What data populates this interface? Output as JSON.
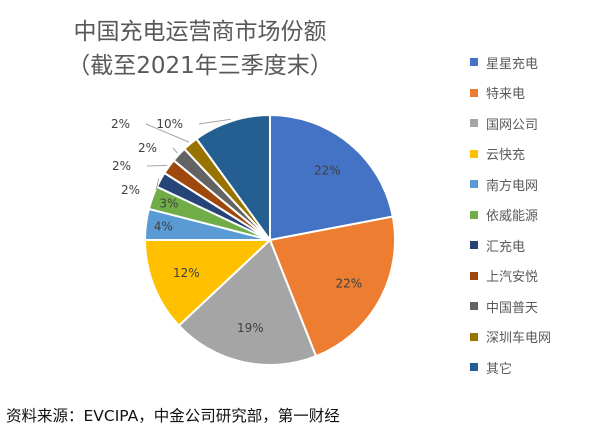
{
  "chart_data": {
    "type": "pie",
    "title": "中国充电运营商市场份额",
    "subtitle": "（截至2021年三季度末）",
    "legend_position": "right",
    "slices": [
      {
        "name": "星星充电",
        "value": 22,
        "label": "22%",
        "color": "#4472C4"
      },
      {
        "name": "特来电",
        "value": 22,
        "label": "22%",
        "color": "#ED7D31"
      },
      {
        "name": "国网公司",
        "value": 19,
        "label": "19%",
        "color": "#A5A5A5"
      },
      {
        "name": "云快充",
        "value": 12,
        "label": "12%",
        "color": "#FFC000"
      },
      {
        "name": "南方电网",
        "value": 4,
        "label": "4%",
        "color": "#5B9BD5"
      },
      {
        "name": "依威能源",
        "value": 3,
        "label": "3%",
        "color": "#70AD47"
      },
      {
        "name": "汇充电",
        "value": 2,
        "label": "2%",
        "color": "#264478"
      },
      {
        "name": "上汽安悦",
        "value": 2,
        "label": "2%",
        "color": "#9E480E"
      },
      {
        "name": "中国普天",
        "value": 2,
        "label": "2%",
        "color": "#636363"
      },
      {
        "name": "深圳车电网",
        "value": 2,
        "label": "2%",
        "color": "#997300"
      },
      {
        "name": "其它",
        "value": 10,
        "label": "10%",
        "color": "#255E91"
      }
    ]
  },
  "source": "资料来源：EVCIPA，中金公司研究部，第一财经"
}
